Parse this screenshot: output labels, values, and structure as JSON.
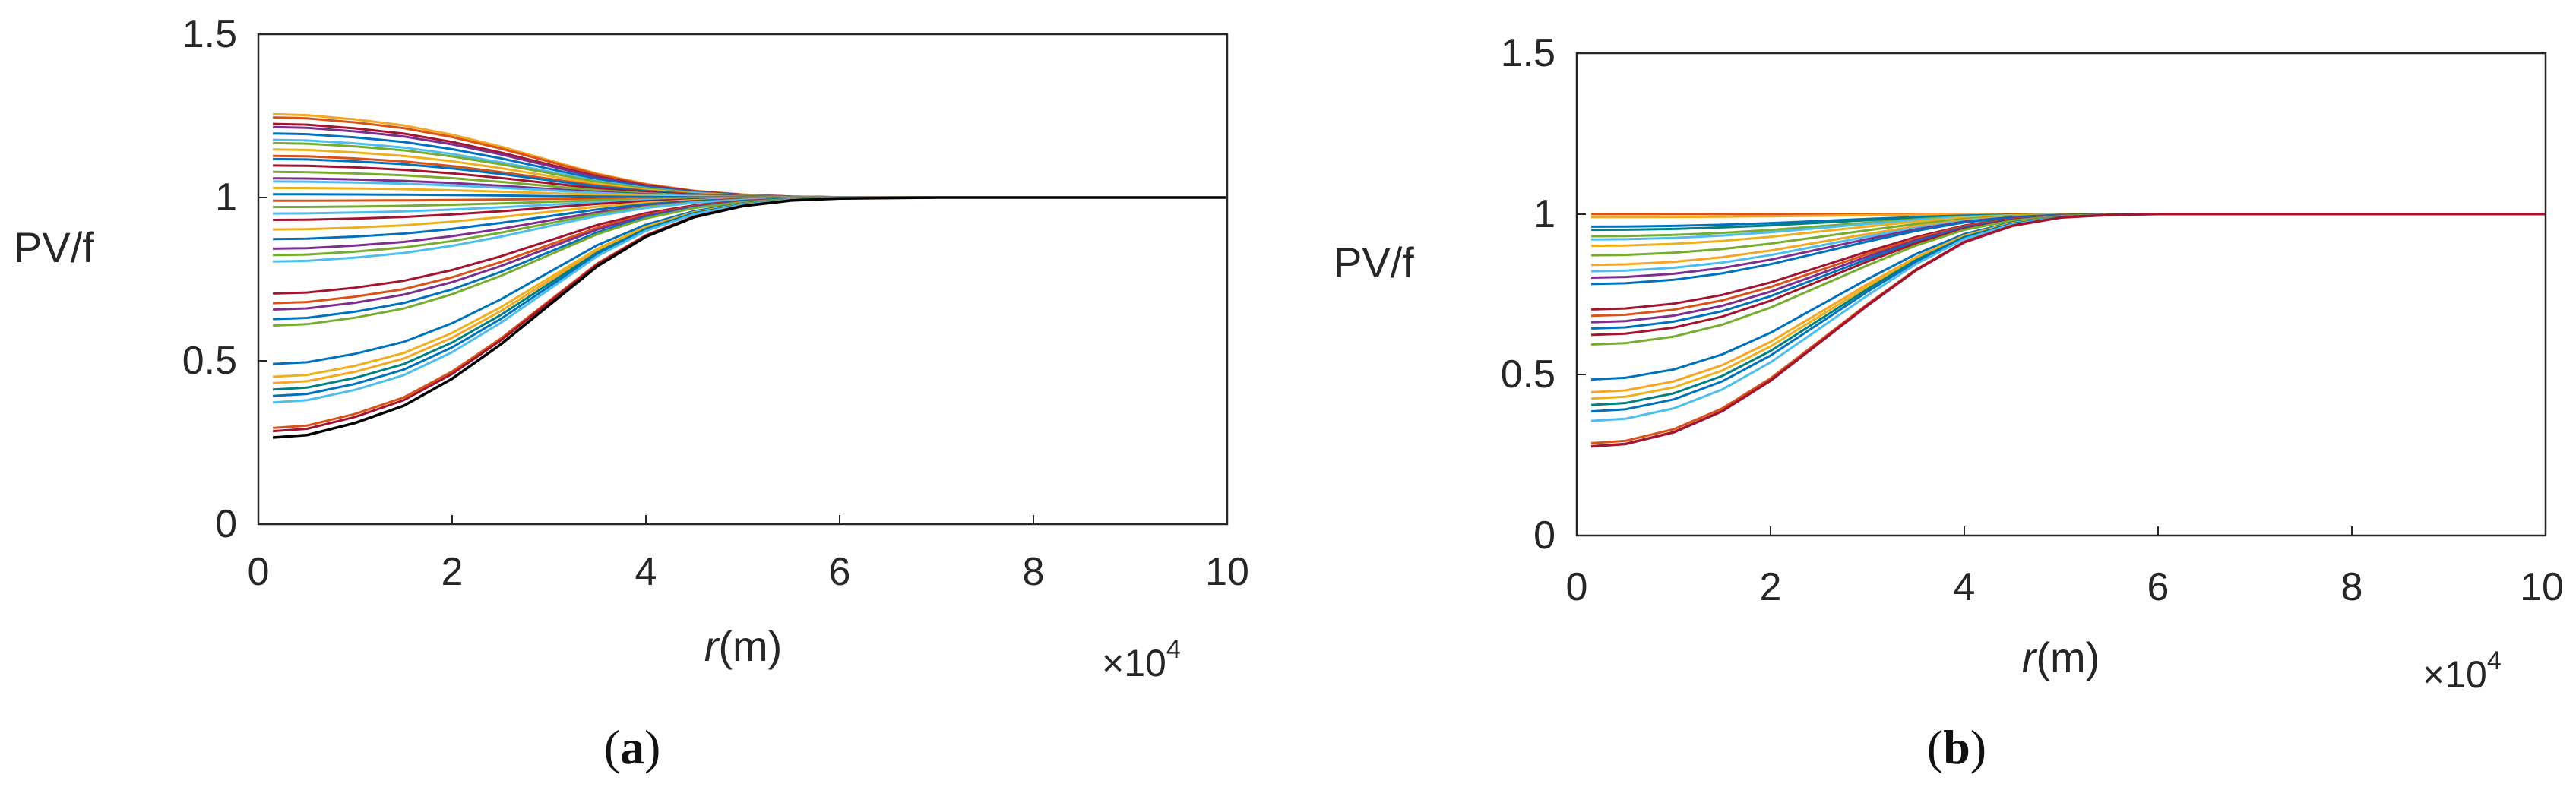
{
  "chart_data": [
    {
      "type": "line",
      "id": "a",
      "caption": "a",
      "ylabel": "PV/f",
      "xlabel_var": "r",
      "xlabel_unit": "(m)",
      "x_multiplier_base": "×10",
      "x_multiplier_exp": "4",
      "xlim": [
        0,
        10
      ],
      "ylim": [
        0,
        1.5
      ],
      "xticks": [
        "0",
        "2",
        "4",
        "6",
        "8",
        "10"
      ],
      "yticks": [
        "0",
        "0.5",
        "1",
        "1.5"
      ],
      "x": [
        0.15,
        0.5,
        1,
        1.5,
        2,
        2.5,
        3,
        3.5,
        4,
        4.5,
        5,
        5.5,
        6,
        7,
        8,
        9,
        10
      ],
      "shape_profile": [
        0.98,
        0.97,
        0.92,
        0.85,
        0.74,
        0.6,
        0.44,
        0.28,
        0.16,
        0.08,
        0.035,
        0.012,
        0.004,
        0,
        0,
        0,
        0
      ],
      "series_center_values": [
        1.26,
        1.25,
        1.23,
        1.22,
        1.2,
        1.18,
        1.17,
        1.15,
        1.13,
        1.12,
        1.1,
        1.08,
        1.06,
        1.05,
        1.03,
        1.01,
        0.99,
        0.97,
        0.95,
        0.93,
        0.9,
        0.87,
        0.84,
        0.82,
        0.8,
        0.7,
        0.67,
        0.65,
        0.62,
        0.6,
        0.48,
        0.44,
        0.42,
        0.4,
        0.38,
        0.36,
        0.28,
        0.27,
        0.25
      ],
      "series_colors": [
        "#F5A623",
        "#D95319",
        "#A2142F",
        "#7E2F8E",
        "#0072BD",
        "#4DBEEE",
        "#77AC30",
        "#EDB120",
        "#D95319",
        "#0072BD",
        "#A2142F",
        "#77AC30",
        "#7E2F8E",
        "#4DBEEE",
        "#EDB120",
        "#0072BD",
        "#D95319",
        "#77AC30",
        "#4DBEEE",
        "#A2142F",
        "#EDB120",
        "#0072BD",
        "#7E2F8E",
        "#77AC30",
        "#4DBEEE",
        "#A2142F",
        "#D95319",
        "#7E2F8E",
        "#0072BD",
        "#77AC30",
        "#0072BD",
        "#EDB120",
        "#F5A623",
        "#008080",
        "#0072BD",
        "#4DBEEE",
        "#D95319",
        "#A2142F",
        "#000000"
      ]
    },
    {
      "type": "line",
      "id": "b",
      "caption": "b",
      "ylabel": "PV/f",
      "xlabel_var": "r",
      "xlabel_unit": "(m)",
      "x_multiplier_base": "×10",
      "x_multiplier_exp": "4",
      "xlim": [
        0,
        10
      ],
      "ylim": [
        0,
        1.5
      ],
      "xticks": [
        "0",
        "2",
        "4",
        "6",
        "8",
        "10"
      ],
      "yticks": [
        "0",
        "0.5",
        "1",
        "1.5"
      ],
      "x": [
        0.15,
        0.5,
        1,
        1.5,
        2,
        2.5,
        3,
        3.5,
        4,
        4.5,
        5,
        5.5,
        6,
        7,
        8,
        9,
        10
      ],
      "shape_profile": [
        0.99,
        0.98,
        0.93,
        0.84,
        0.71,
        0.55,
        0.39,
        0.24,
        0.12,
        0.05,
        0.015,
        0.004,
        0,
        0,
        0,
        0,
        0
      ],
      "series_center_values": [
        1.0,
        1.0,
        0.99,
        0.96,
        0.95,
        0.93,
        0.92,
        0.9,
        0.87,
        0.84,
        0.82,
        0.8,
        0.78,
        0.7,
        0.68,
        0.66,
        0.64,
        0.62,
        0.59,
        0.48,
        0.44,
        0.42,
        0.4,
        0.38,
        0.35,
        0.28,
        0.27
      ],
      "series_colors": [
        "#EDB120",
        "#D95319",
        "#F5A623",
        "#0072BD",
        "#008080",
        "#77AC30",
        "#4DBEEE",
        "#EDB120",
        "#77AC30",
        "#F5A623",
        "#4DBEEE",
        "#7E2F8E",
        "#0072BD",
        "#A2142F",
        "#D95319",
        "#7E2F8E",
        "#0072BD",
        "#A2142F",
        "#77AC30",
        "#0072BD",
        "#F5A623",
        "#EDB120",
        "#008080",
        "#0072BD",
        "#4DBEEE",
        "#D95319",
        "#A2142F"
      ]
    }
  ]
}
